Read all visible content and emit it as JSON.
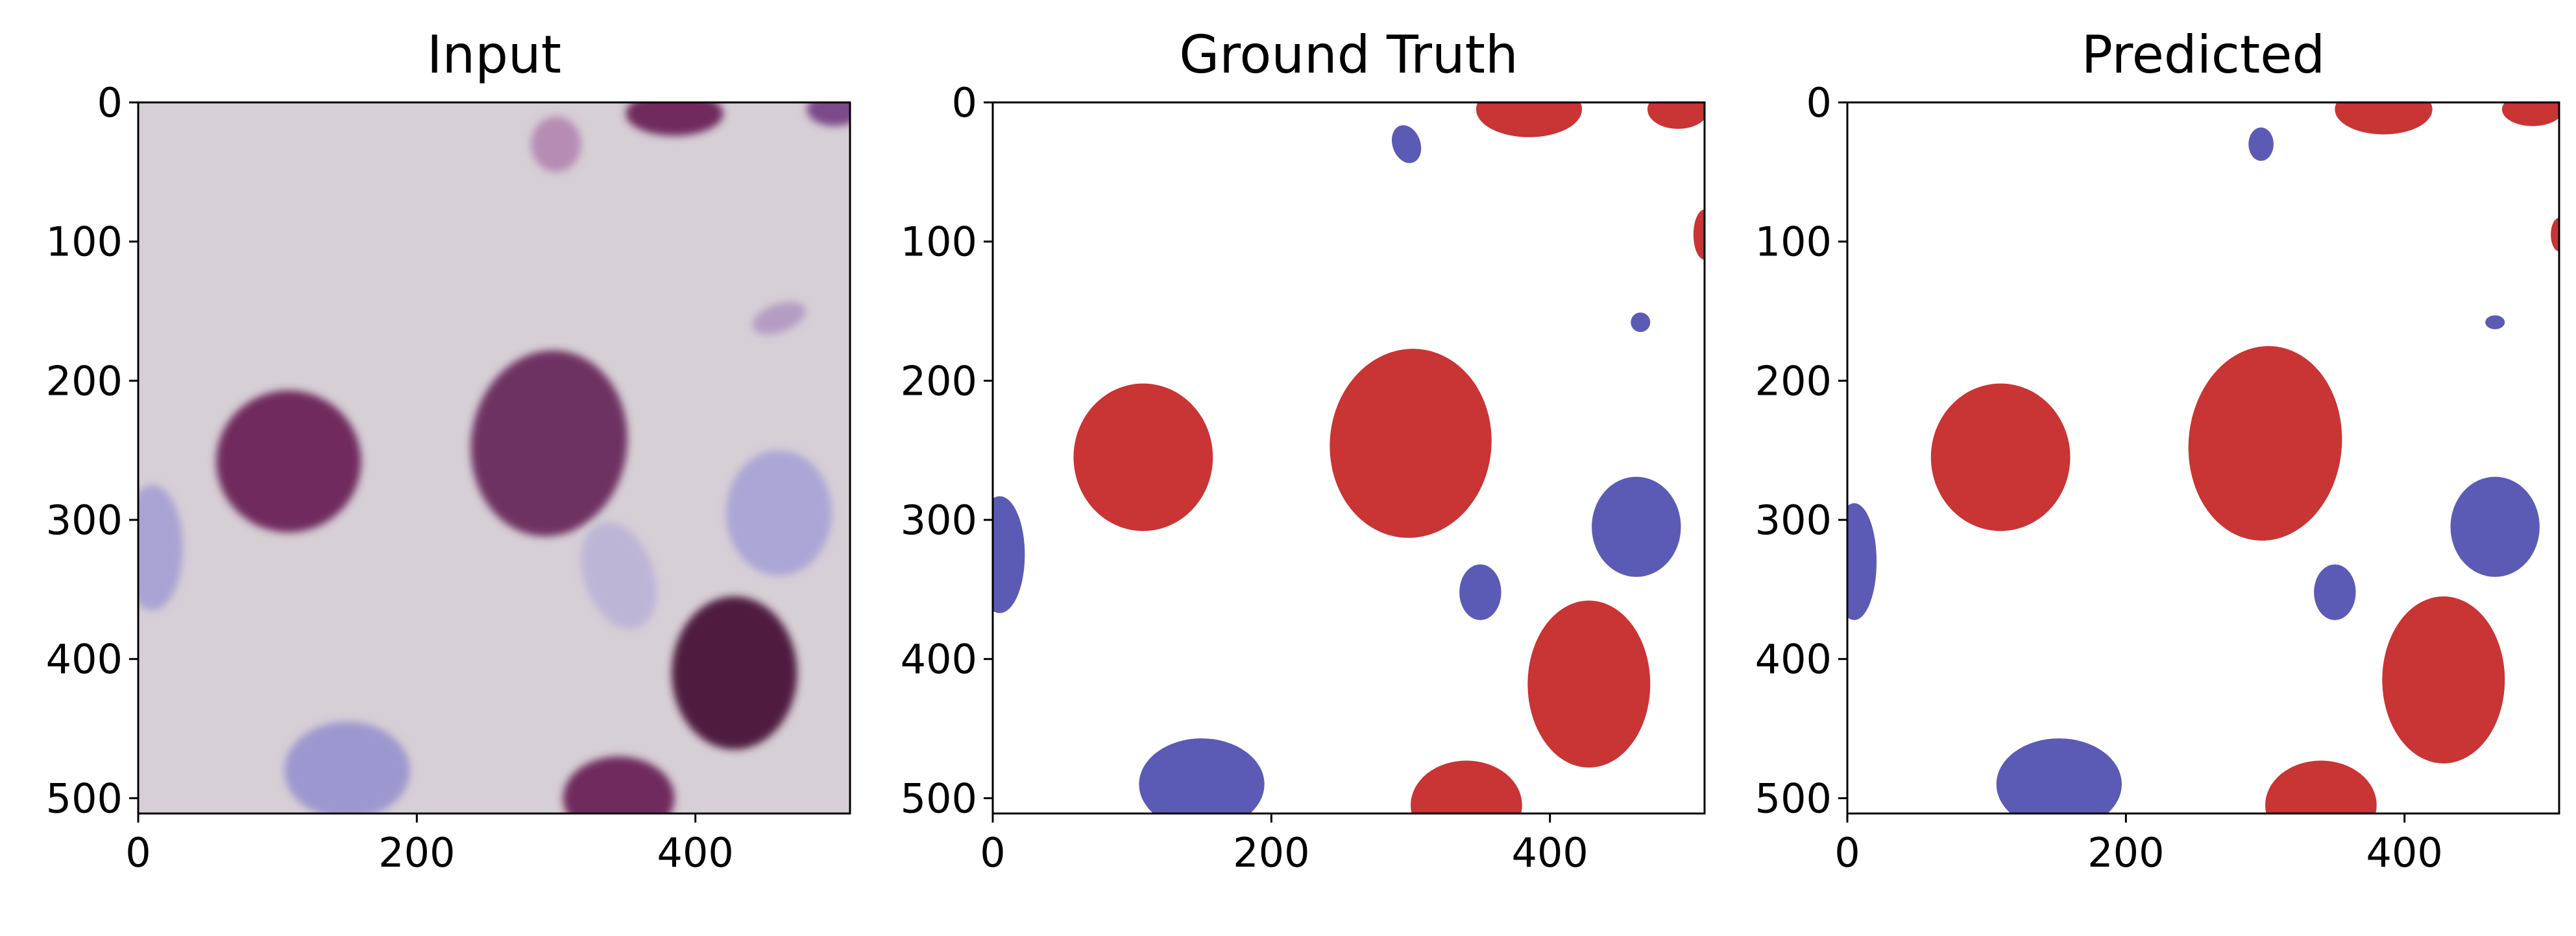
{
  "figure": {
    "domain_range": [
      0,
      511
    ],
    "panels": [
      {
        "title": "Input",
        "kind": "image",
        "background": "#d7cfd6",
        "blobs": [
          {
            "cx": 108,
            "cy": 258,
            "rx": 52,
            "ry": 51,
            "rot": 0,
            "color": "#6f2a5d"
          },
          {
            "cx": 295,
            "cy": 245,
            "rx": 56,
            "ry": 67,
            "rot": 8,
            "color": "#6e3162"
          },
          {
            "cx": 428,
            "cy": 410,
            "rx": 45,
            "ry": 55,
            "rot": 0,
            "color": "#4f1a40"
          },
          {
            "cx": 345,
            "cy": 500,
            "rx": 40,
            "ry": 30,
            "rot": 0,
            "color": "#6f2a5d"
          },
          {
            "cx": 385,
            "cy": 8,
            "rx": 35,
            "ry": 16,
            "rot": 0,
            "color": "#6f2a5d"
          },
          {
            "cx": 500,
            "cy": 5,
            "rx": 20,
            "ry": 12,
            "rot": 0,
            "color": "#7b4a8a"
          },
          {
            "cx": 150,
            "cy": 480,
            "rx": 45,
            "ry": 35,
            "rot": 0,
            "color": "#9d97cf"
          },
          {
            "cx": 10,
            "cy": 320,
            "rx": 22,
            "ry": 45,
            "rot": 0,
            "color": "#a9a3d3"
          },
          {
            "cx": 460,
            "cy": 295,
            "rx": 38,
            "ry": 45,
            "rot": 0,
            "color": "#aba6d5"
          },
          {
            "cx": 345,
            "cy": 340,
            "rx": 25,
            "ry": 40,
            "rot": -20,
            "color": "#bdb5d6"
          },
          {
            "cx": 300,
            "cy": 30,
            "rx": 18,
            "ry": 20,
            "rot": 0,
            "color": "#b58db3"
          },
          {
            "cx": 460,
            "cy": 155,
            "rx": 20,
            "ry": 10,
            "rot": -20,
            "color": "#b49cc2"
          }
        ]
      },
      {
        "title": "Ground Truth",
        "kind": "mask",
        "background": "#ffffff",
        "blobs": [
          {
            "cx": 108,
            "cy": 255,
            "rx": 50,
            "ry": 53,
            "rot": 0,
            "color": "#c93434"
          },
          {
            "cx": 300,
            "cy": 245,
            "rx": 58,
            "ry": 68,
            "rot": 5,
            "color": "#c93434"
          },
          {
            "cx": 428,
            "cy": 418,
            "rx": 44,
            "ry": 60,
            "rot": 0,
            "color": "#c93434"
          },
          {
            "cx": 340,
            "cy": 505,
            "rx": 40,
            "ry": 32,
            "rot": 0,
            "color": "#c93434"
          },
          {
            "cx": 385,
            "cy": 5,
            "rx": 38,
            "ry": 20,
            "rot": 0,
            "color": "#c93434"
          },
          {
            "cx": 492,
            "cy": 5,
            "rx": 22,
            "ry": 14,
            "rot": 0,
            "color": "#c93434"
          },
          {
            "cx": 511,
            "cy": 95,
            "rx": 8,
            "ry": 18,
            "rot": 0,
            "color": "#c93434"
          },
          {
            "cx": 150,
            "cy": 490,
            "rx": 45,
            "ry": 33,
            "rot": 0,
            "color": "#5b5bb5"
          },
          {
            "cx": 5,
            "cy": 325,
            "rx": 18,
            "ry": 42,
            "rot": 0,
            "color": "#5b5bb5"
          },
          {
            "cx": 462,
            "cy": 305,
            "rx": 32,
            "ry": 36,
            "rot": 0,
            "color": "#5b5bb5"
          },
          {
            "cx": 350,
            "cy": 352,
            "rx": 15,
            "ry": 20,
            "rot": 0,
            "color": "#5b5bb5"
          },
          {
            "cx": 297,
            "cy": 30,
            "rx": 10,
            "ry": 14,
            "rot": -20,
            "color": "#5b5bb5"
          },
          {
            "cx": 465,
            "cy": 158,
            "rx": 7,
            "ry": 7,
            "rot": 0,
            "color": "#5b5bb5"
          }
        ]
      },
      {
        "title": "Predicted",
        "kind": "mask",
        "background": "#ffffff",
        "blobs": [
          {
            "cx": 110,
            "cy": 255,
            "rx": 50,
            "ry": 53,
            "rot": 0,
            "color": "#c93434"
          },
          {
            "cx": 300,
            "cy": 245,
            "rx": 55,
            "ry": 70,
            "rot": 5,
            "color": "#c93434"
          },
          {
            "cx": 428,
            "cy": 415,
            "rx": 44,
            "ry": 60,
            "rot": 0,
            "color": "#c93434"
          },
          {
            "cx": 340,
            "cy": 505,
            "rx": 40,
            "ry": 32,
            "rot": 0,
            "color": "#c93434"
          },
          {
            "cx": 385,
            "cy": 5,
            "rx": 35,
            "ry": 18,
            "rot": 0,
            "color": "#c93434"
          },
          {
            "cx": 492,
            "cy": 5,
            "rx": 22,
            "ry": 12,
            "rot": 0,
            "color": "#c93434"
          },
          {
            "cx": 511,
            "cy": 95,
            "rx": 6,
            "ry": 12,
            "rot": 0,
            "color": "#c93434"
          },
          {
            "cx": 152,
            "cy": 490,
            "rx": 45,
            "ry": 33,
            "rot": 0,
            "color": "#5b5bb5"
          },
          {
            "cx": 5,
            "cy": 330,
            "rx": 16,
            "ry": 42,
            "rot": 0,
            "color": "#5b5bb5"
          },
          {
            "cx": 465,
            "cy": 305,
            "rx": 32,
            "ry": 36,
            "rot": 0,
            "color": "#5b5bb5"
          },
          {
            "cx": 350,
            "cy": 352,
            "rx": 15,
            "ry": 20,
            "rot": 0,
            "color": "#5b5bb5"
          },
          {
            "cx": 297,
            "cy": 30,
            "rx": 9,
            "ry": 12,
            "rot": 0,
            "color": "#5b5bb5"
          },
          {
            "cx": 465,
            "cy": 158,
            "rx": 7,
            "ry": 5,
            "rot": 0,
            "color": "#5b5bb5"
          }
        ]
      }
    ],
    "x_ticks": [
      0,
      200,
      400
    ],
    "y_ticks": [
      0,
      100,
      200,
      300,
      400,
      500
    ]
  }
}
